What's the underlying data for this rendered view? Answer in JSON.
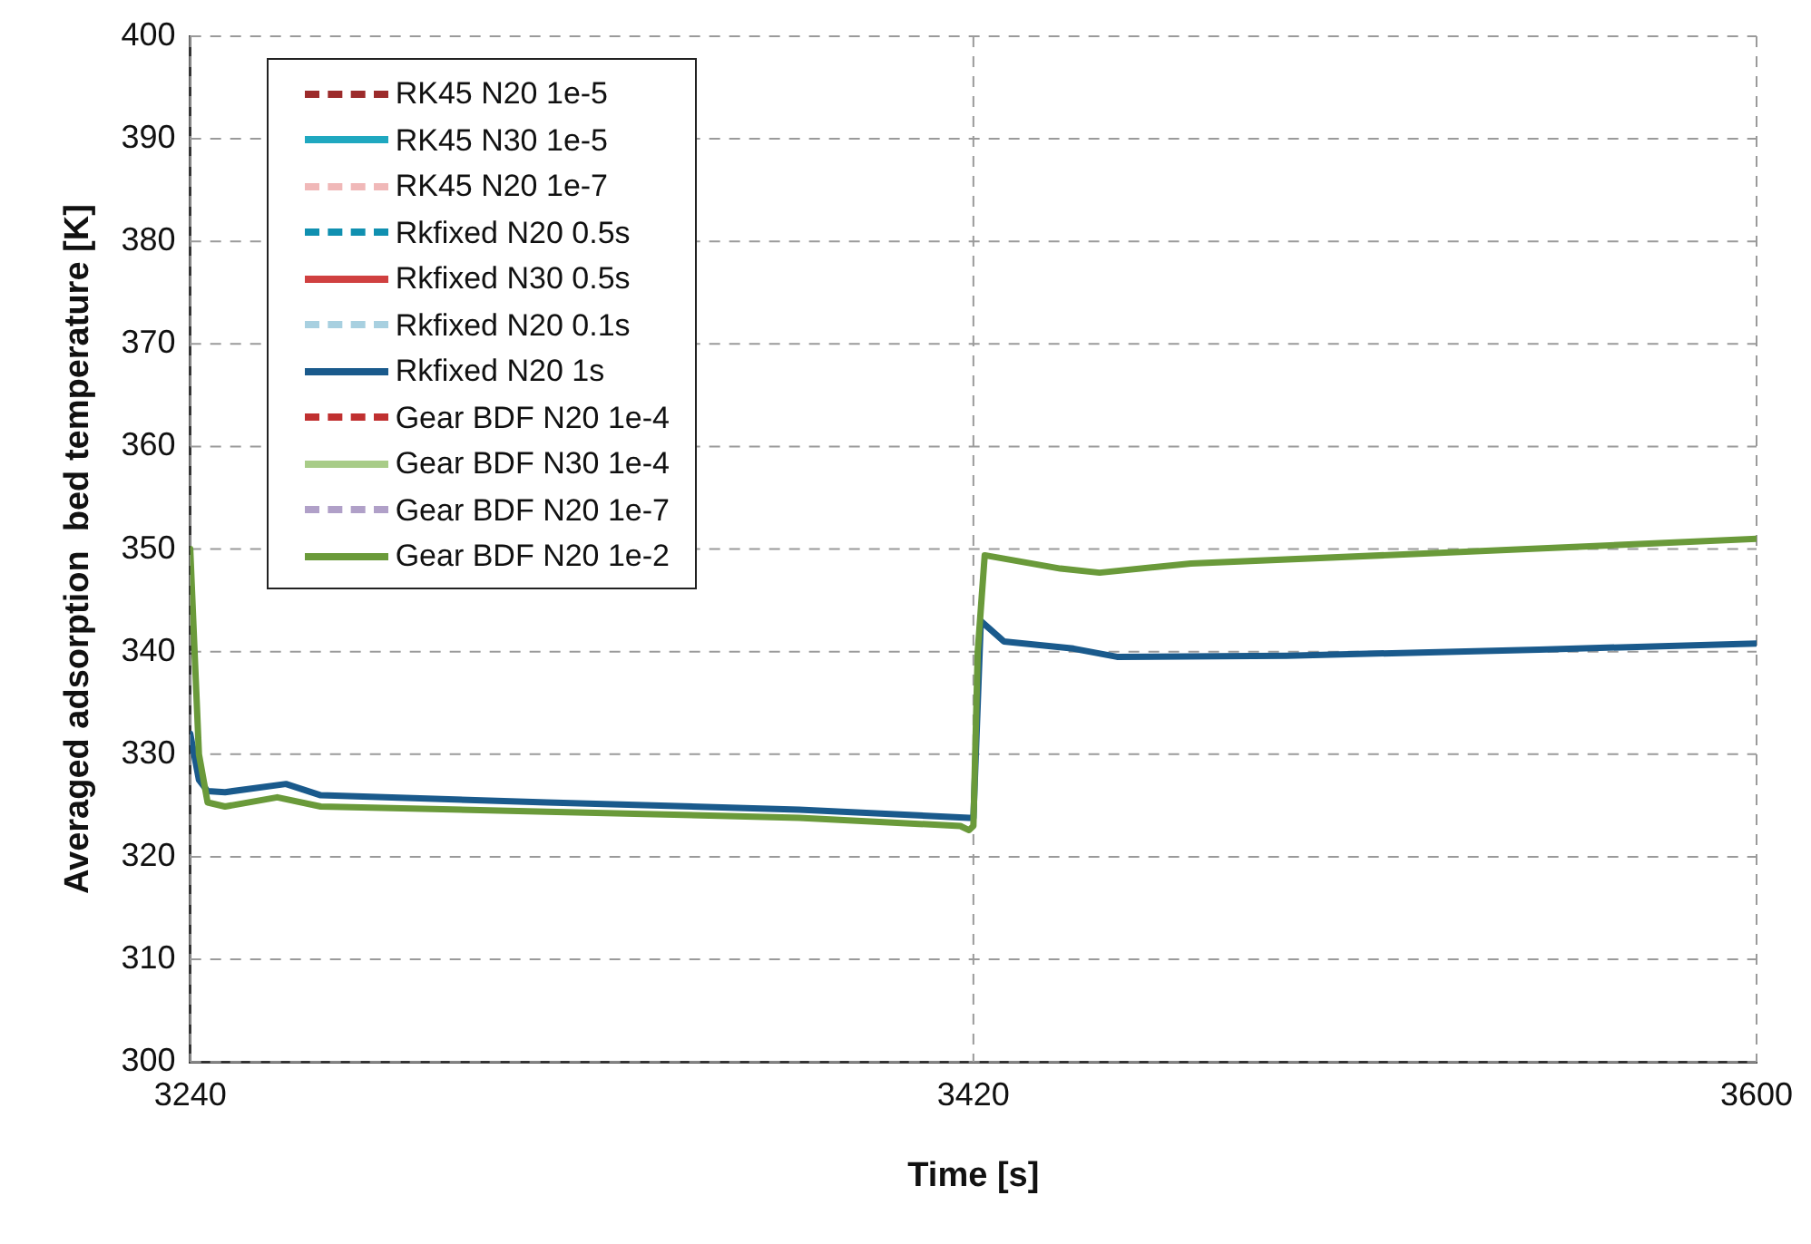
{
  "chart_data": {
    "type": "line",
    "xlabel": "Time [s]",
    "ylabel": "Averaged adsorption  bed temperature [K]",
    "xlim": [
      3240,
      3600
    ],
    "xticks": [
      3240,
      3420,
      3600
    ],
    "ylim": [
      300,
      400
    ],
    "yticks": [
      300,
      310,
      320,
      330,
      340,
      350,
      360,
      370,
      380,
      390,
      400
    ],
    "grid": true,
    "legend": "top left",
    "marker": "none",
    "series": [
      {
        "name": "RK45 N20 1e-5",
        "color": "#9c2b2b",
        "line_style": "dashed"
      },
      {
        "name": "RK45 N30 1e-5",
        "color": "#1fa8c0",
        "line_style": "solid"
      },
      {
        "name": "RK45 N20 1e-7",
        "color": "#f0b8b8",
        "line_style": "dashed"
      },
      {
        "name": "Rkfixed N20 0.5s",
        "color": "#1090b0",
        "line_style": "dashed"
      },
      {
        "name": "Rkfixed N30 0.5s",
        "color": "#d04040",
        "line_style": "solid"
      },
      {
        "name": "Rkfixed N20 0.1s",
        "color": "#a8d0e0",
        "line_style": "dashed"
      },
      {
        "name": "Rkfixed N20 1s",
        "color": "#1a5a8c",
        "line_style": "solid",
        "x": [
          3240,
          3242,
          3244,
          3248,
          3262,
          3270,
          3322,
          3380,
          3419,
          3420,
          3421,
          3421.7,
          3427,
          3443,
          3453,
          3492,
          3550,
          3600
        ],
        "values": [
          332,
          327.5,
          326.4,
          326.3,
          327.1,
          326.0,
          325.3,
          324.6,
          323.8,
          323.8,
          335,
          343.0,
          341.0,
          340.3,
          339.5,
          339.6,
          340.2,
          340.8
        ]
      },
      {
        "name": "Gear BDF N20 1e-4",
        "color": "#c03030",
        "line_style": "dashed"
      },
      {
        "name": "Gear BDF N30 1e-4",
        "color": "#a8cc88",
        "line_style": "solid"
      },
      {
        "name": "Gear BDF N20 1e-7",
        "color": "#b0a0c8",
        "line_style": "dashed"
      },
      {
        "name": "Gear BDF N20 1e-2",
        "color": "#6a9a3a",
        "line_style": "solid",
        "x": [
          3240,
          3241,
          3242,
          3244,
          3248,
          3260,
          3270,
          3322,
          3380,
          3417,
          3419,
          3420,
          3421,
          3422.6,
          3440,
          3449,
          3470,
          3520,
          3600
        ],
        "values": [
          350,
          340,
          330,
          325.3,
          324.9,
          325.8,
          324.9,
          324.4,
          323.8,
          323.0,
          322.6,
          323,
          340,
          349.4,
          348.1,
          347.7,
          348.6,
          349.5,
          351.0
        ]
      }
    ]
  }
}
